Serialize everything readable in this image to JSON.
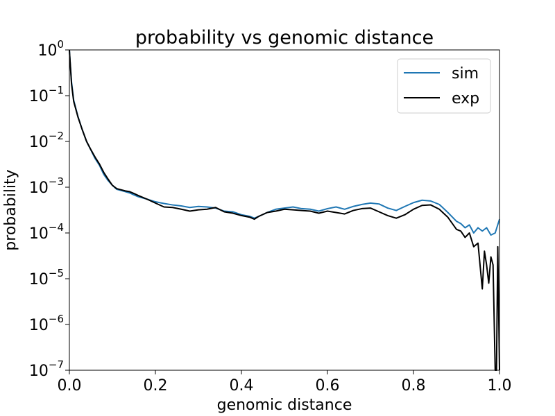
{
  "chart_data": {
    "type": "line",
    "title": "probability vs genomic distance",
    "xlabel": "genomic distance",
    "ylabel": "probability",
    "xlim": [
      0.0,
      1.0
    ],
    "ylim": [
      1e-07,
      1
    ],
    "yscale": "log",
    "grid": false,
    "legend_position": "top-right",
    "x_ticks": [
      "0.0",
      "0.2",
      "0.4",
      "0.6",
      "0.8",
      "1.0"
    ],
    "y_ticks": [
      {
        "base": "10",
        "exp": "0"
      },
      {
        "base": "10",
        "exp": "−1"
      },
      {
        "base": "10",
        "exp": "−2"
      },
      {
        "base": "10",
        "exp": "−3"
      },
      {
        "base": "10",
        "exp": "−4"
      },
      {
        "base": "10",
        "exp": "−5"
      },
      {
        "base": "10",
        "exp": "−6"
      },
      {
        "base": "10",
        "exp": "−7"
      }
    ],
    "series": [
      {
        "name": "sim",
        "color": "#1f77b4",
        "points": [
          [
            0.0,
            1.0
          ],
          [
            0.002,
            0.5
          ],
          [
            0.005,
            0.2
          ],
          [
            0.01,
            0.08
          ],
          [
            0.02,
            0.035
          ],
          [
            0.03,
            0.018
          ],
          [
            0.04,
            0.01
          ],
          [
            0.05,
            0.0065
          ],
          [
            0.06,
            0.0042
          ],
          [
            0.07,
            0.003
          ],
          [
            0.08,
            0.0019
          ],
          [
            0.09,
            0.0014
          ],
          [
            0.1,
            0.0011
          ],
          [
            0.11,
            0.0009
          ],
          [
            0.12,
            0.00085
          ],
          [
            0.13,
            0.0008
          ],
          [
            0.14,
            0.00075
          ],
          [
            0.15,
            0.00068
          ],
          [
            0.16,
            0.00062
          ],
          [
            0.18,
            0.00055
          ],
          [
            0.2,
            0.00048
          ],
          [
            0.22,
            0.00044
          ],
          [
            0.24,
            0.00041
          ],
          [
            0.26,
            0.00039
          ],
          [
            0.28,
            0.00036
          ],
          [
            0.3,
            0.00038
          ],
          [
            0.32,
            0.00037
          ],
          [
            0.34,
            0.00035
          ],
          [
            0.36,
            0.0003
          ],
          [
            0.38,
            0.00029
          ],
          [
            0.4,
            0.00025
          ],
          [
            0.42,
            0.00023
          ],
          [
            0.43,
            0.00021
          ],
          [
            0.44,
            0.00023
          ],
          [
            0.46,
            0.00028
          ],
          [
            0.48,
            0.00033
          ],
          [
            0.5,
            0.00035
          ],
          [
            0.52,
            0.00037
          ],
          [
            0.54,
            0.00034
          ],
          [
            0.56,
            0.00033
          ],
          [
            0.58,
            0.0003
          ],
          [
            0.6,
            0.00034
          ],
          [
            0.62,
            0.00037
          ],
          [
            0.64,
            0.00033
          ],
          [
            0.66,
            0.00038
          ],
          [
            0.68,
            0.00042
          ],
          [
            0.7,
            0.00045
          ],
          [
            0.72,
            0.00043
          ],
          [
            0.74,
            0.00035
          ],
          [
            0.76,
            0.00031
          ],
          [
            0.78,
            0.00038
          ],
          [
            0.8,
            0.00046
          ],
          [
            0.82,
            0.00052
          ],
          [
            0.84,
            0.0005
          ],
          [
            0.86,
            0.00042
          ],
          [
            0.88,
            0.00028
          ],
          [
            0.9,
            0.00018
          ],
          [
            0.91,
            0.00016
          ],
          [
            0.92,
            0.00013
          ],
          [
            0.93,
            0.00015
          ],
          [
            0.94,
            0.0001
          ],
          [
            0.95,
            0.00013
          ],
          [
            0.96,
            0.00011
          ],
          [
            0.97,
            0.00013
          ],
          [
            0.98,
            9e-05
          ],
          [
            0.99,
            0.0001
          ],
          [
            1.0,
            0.0002
          ]
        ]
      },
      {
        "name": "exp",
        "color": "#000000",
        "points": [
          [
            0.0,
            1.0
          ],
          [
            0.002,
            0.5
          ],
          [
            0.005,
            0.18
          ],
          [
            0.01,
            0.075
          ],
          [
            0.02,
            0.034
          ],
          [
            0.03,
            0.018
          ],
          [
            0.04,
            0.01
          ],
          [
            0.05,
            0.0066
          ],
          [
            0.06,
            0.0045
          ],
          [
            0.07,
            0.0032
          ],
          [
            0.08,
            0.0021
          ],
          [
            0.09,
            0.0015
          ],
          [
            0.1,
            0.0011
          ],
          [
            0.11,
            0.00093
          ],
          [
            0.12,
            0.00088
          ],
          [
            0.13,
            0.00083
          ],
          [
            0.14,
            0.0008
          ],
          [
            0.15,
            0.00073
          ],
          [
            0.16,
            0.00066
          ],
          [
            0.18,
            0.00055
          ],
          [
            0.2,
            0.00045
          ],
          [
            0.22,
            0.00037
          ],
          [
            0.24,
            0.00036
          ],
          [
            0.26,
            0.00033
          ],
          [
            0.28,
            0.0003
          ],
          [
            0.3,
            0.00032
          ],
          [
            0.32,
            0.00033
          ],
          [
            0.34,
            0.00036
          ],
          [
            0.36,
            0.00029
          ],
          [
            0.38,
            0.00027
          ],
          [
            0.4,
            0.00024
          ],
          [
            0.42,
            0.00022
          ],
          [
            0.43,
            0.0002
          ],
          [
            0.44,
            0.00023
          ],
          [
            0.46,
            0.00028
          ],
          [
            0.48,
            0.0003
          ],
          [
            0.5,
            0.00033
          ],
          [
            0.52,
            0.00032
          ],
          [
            0.54,
            0.00031
          ],
          [
            0.56,
            0.0003
          ],
          [
            0.58,
            0.00027
          ],
          [
            0.6,
            0.0003
          ],
          [
            0.62,
            0.00028
          ],
          [
            0.64,
            0.00026
          ],
          [
            0.66,
            0.00031
          ],
          [
            0.68,
            0.00034
          ],
          [
            0.7,
            0.00035
          ],
          [
            0.72,
            0.00029
          ],
          [
            0.74,
            0.00024
          ],
          [
            0.76,
            0.00021
          ],
          [
            0.78,
            0.00025
          ],
          [
            0.8,
            0.00033
          ],
          [
            0.82,
            0.0004
          ],
          [
            0.84,
            0.00041
          ],
          [
            0.86,
            0.00033
          ],
          [
            0.88,
            0.00022
          ],
          [
            0.9,
            0.00012
          ],
          [
            0.91,
            0.00011
          ],
          [
            0.92,
            8e-05
          ],
          [
            0.93,
            0.0001
          ],
          [
            0.94,
            5e-05
          ],
          [
            0.95,
            6e-05
          ],
          [
            0.96,
            6e-06
          ],
          [
            0.965,
            4e-05
          ],
          [
            0.97,
            2e-05
          ],
          [
            0.975,
            8e-06
          ],
          [
            0.98,
            3e-05
          ],
          [
            0.985,
            2e-05
          ],
          [
            0.99,
            1e-07
          ],
          [
            0.993,
            1e-07
          ],
          [
            0.996,
            5e-05
          ],
          [
            1.0,
            1e-07
          ]
        ]
      }
    ]
  }
}
